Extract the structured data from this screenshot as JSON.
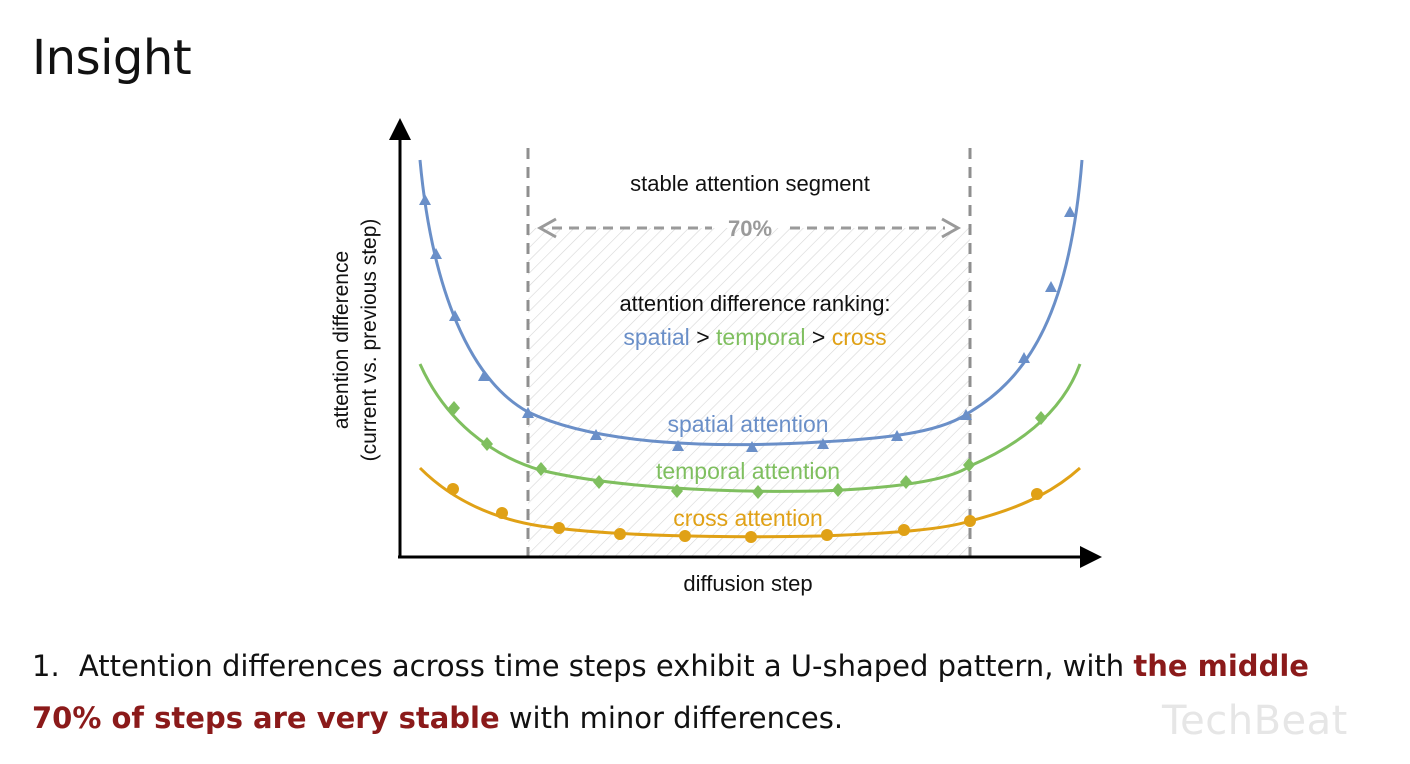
{
  "title": "Insight",
  "diagram": {
    "segment_label": "stable attention segment",
    "segment_percent": "70%",
    "ranking_title": "attention difference ranking:",
    "ranking": {
      "spatial": "spatial",
      "temporal": "temporal",
      "cross": "cross",
      "sep": ">"
    },
    "y_axis_line1": "attention difference",
    "y_axis_line2": "(current vs. previous step)",
    "x_axis": "diffusion step",
    "curves": {
      "spatial": "spatial attention",
      "temporal": "temporal attention",
      "cross": "cross attention"
    },
    "colors": {
      "spatial": "#6a8fc8",
      "temporal": "#7fbf5f",
      "cross": "#e0a116",
      "dashed": "#8f8f8f"
    }
  },
  "bullet": {
    "number": "1.",
    "text_before": "Attention differences across time steps exhibit a U-shaped pattern, with",
    "highlight": "the middle 70% of steps are very stable",
    "text_after": "with minor differences."
  },
  "watermark": "TechBeat"
}
